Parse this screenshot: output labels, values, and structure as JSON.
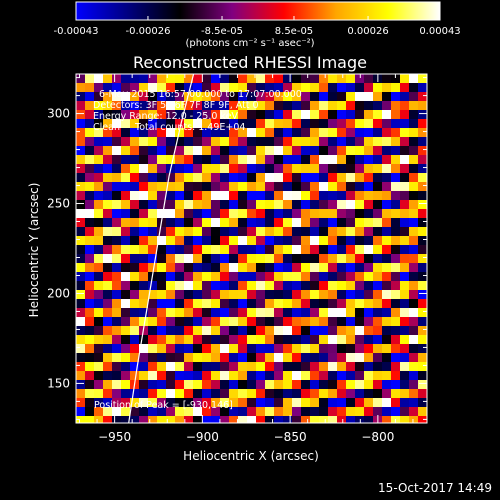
{
  "title": "Reconstructed RHESSI Image",
  "timestamp": "15-Oct-2017 14:49",
  "colorbar": {
    "ticks": [
      "-0.00043",
      "-0.00026",
      "-8.5e-05",
      "8.5e-05",
      "0.00026",
      "0.00043"
    ],
    "tick_values": [
      -0.00043,
      -0.00026,
      -8.5e-05,
      8.5e-05,
      0.00026,
      0.00043
    ],
    "range": [
      -0.00043,
      0.00043
    ],
    "label": "(photons cm⁻² s⁻¹ asec⁻²)",
    "colors": [
      "#0000ff",
      "#000080",
      "#000000",
      "#800080",
      "#ff0000",
      "#ffa500",
      "#ffff00",
      "#ffffff"
    ]
  },
  "annotations": {
    "line1": "6-May-2015 16:57:00.000 to 17:07:00.000",
    "line2": "Detectors: 3F 5F 6F 7F 8F 9F, Att 0",
    "line3": "Energy Range: 12.0 - 25.0 keV",
    "line4": "Clean     Total counts: 1.49E+04",
    "peak": "Position of Peak = [-930,146]"
  },
  "chart_data": {
    "type": "heatmap",
    "title": "Reconstructed RHESSI Image",
    "xlabel": "Heliocentric X (arcsec)",
    "ylabel": "Heliocentric Y (arcsec)",
    "xlim": [
      -972,
      -772
    ],
    "ylim": [
      128,
      322
    ],
    "x_ticks": [
      -950,
      -900,
      -850,
      -800
    ],
    "y_ticks": [
      150,
      200,
      250,
      300
    ],
    "value_range": [
      -0.00043,
      0.00043
    ],
    "colormap": "blue-black-red-yellow-white",
    "pattern": "diagonal fringe stripes rising left to right",
    "limb_curve": {
      "x": [
        -942,
        -937,
        -931,
        -925,
        -919,
        -912,
        -905
      ],
      "y": [
        128,
        160,
        195,
        230,
        265,
        295,
        322
      ]
    },
    "peak_position": [
      -930,
      146
    ]
  }
}
